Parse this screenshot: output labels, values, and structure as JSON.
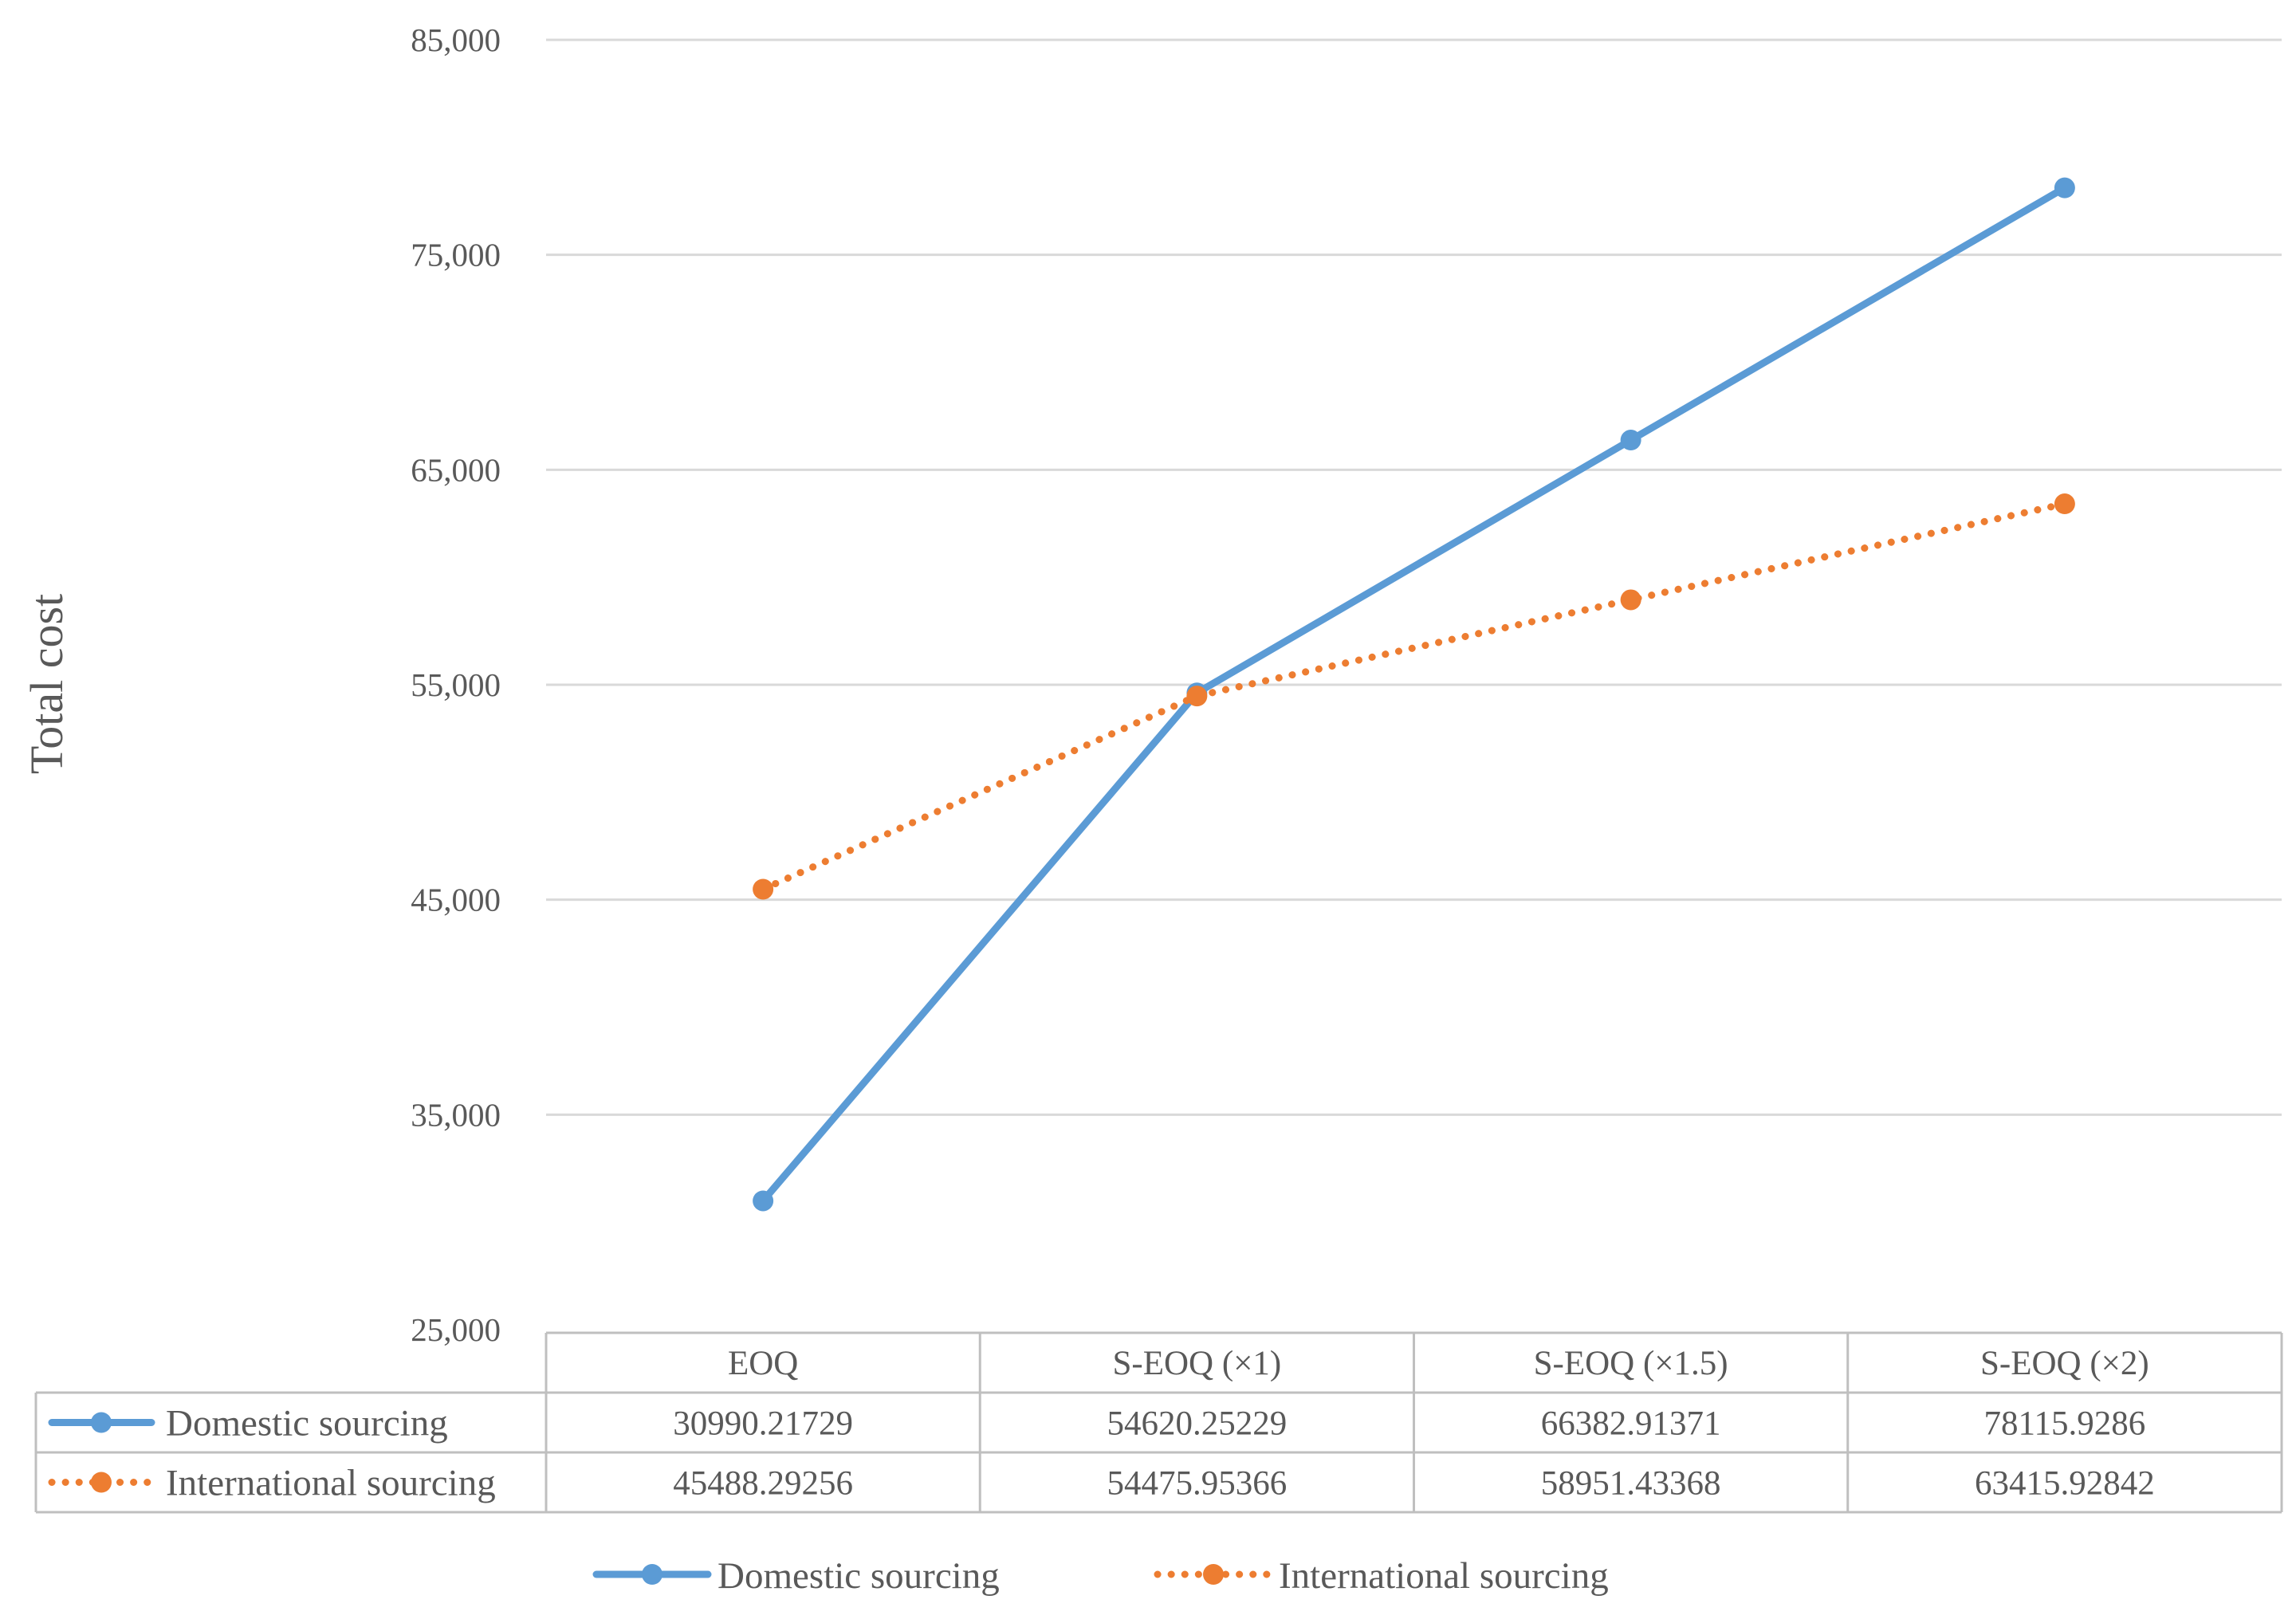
{
  "chart_data": {
    "type": "line",
    "ylabel": "Total cost",
    "ylim": [
      25000,
      85000
    ],
    "yticks": [
      25000,
      35000,
      45000,
      55000,
      65000,
      75000,
      85000
    ],
    "ytick_labels": [
      "25,000",
      "35,000",
      "45,000",
      "55,000",
      "65,000",
      "75,000",
      "85,000"
    ],
    "categories": [
      "EOQ",
      "S-EOQ (×1)",
      "S-EOQ (×1.5)",
      "S-EOQ (×2)"
    ],
    "grid": true,
    "legend_position": "bottom",
    "series": [
      {
        "name": "Domestic sourcing",
        "values": [
          30990.21729,
          54620.25229,
          66382.91371,
          78115.9286
        ],
        "value_labels": [
          "30990.21729",
          "54620.25229",
          "66382.91371",
          "78115.9286"
        ],
        "color": "#5B9BD5",
        "line_style": "solid"
      },
      {
        "name": "International sourcing",
        "values": [
          45488.29256,
          54475.95366,
          58951.43368,
          63415.92842
        ],
        "value_labels": [
          "45488.29256",
          "54475.95366",
          "58951.43368",
          "63415.92842"
        ],
        "color": "#ED7D31",
        "line_style": "dotted"
      }
    ]
  }
}
